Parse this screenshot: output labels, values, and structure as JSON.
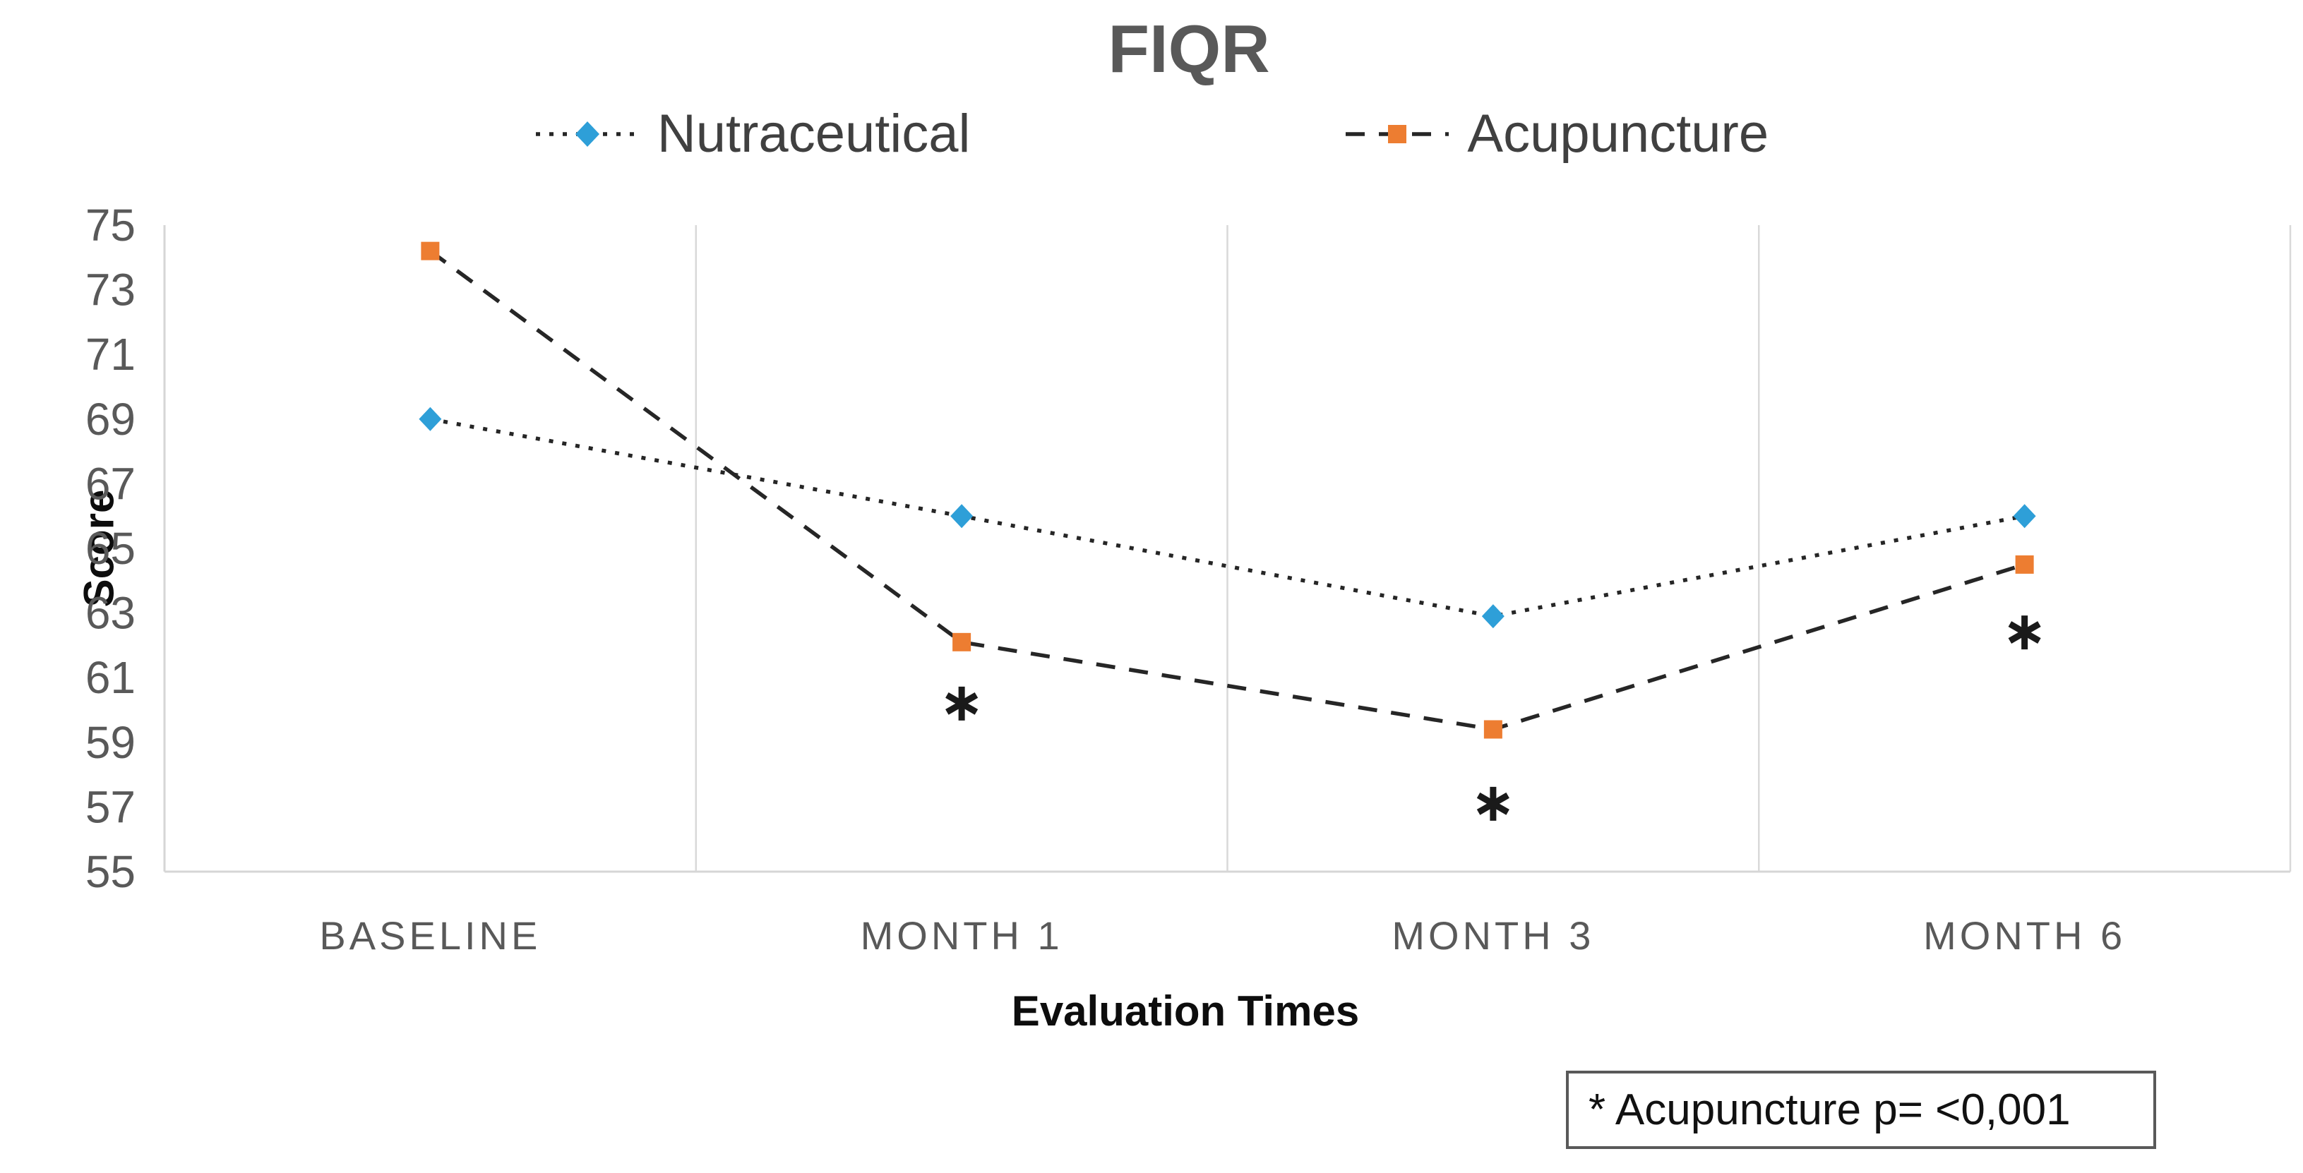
{
  "chart_data": {
    "type": "line",
    "title": "FIQR",
    "xlabel": "Evaluation Times",
    "ylabel": "Score",
    "categories": [
      "BASELINE",
      "MONTH 1",
      "MONTH 3",
      "MONTH 6"
    ],
    "series": [
      {
        "name": "Nutraceutical",
        "values": [
          69,
          66,
          62.9,
          66
        ],
        "marker": "diamond",
        "marker_color": "#2E9FD8",
        "line_style": "dotted",
        "line_color": "#262626"
      },
      {
        "name": "Acupuncture",
        "values": [
          74.2,
          62.1,
          59.4,
          64.5
        ],
        "marker": "square",
        "marker_color": "#ED7D31",
        "line_style": "dashed",
        "line_color": "#262626"
      }
    ],
    "ylim": [
      55,
      75
    ],
    "yticks": [
      55,
      57,
      59,
      61,
      63,
      65,
      67,
      69,
      71,
      73,
      75
    ],
    "grid": "vertical-category-boundaries",
    "legend_position": "top",
    "annotations": {
      "significance_marks": [
        {
          "category_index": 1,
          "series": "Acupuncture",
          "symbol": "*",
          "score_position": 60.2
        },
        {
          "category_index": 2,
          "series": "Acupuncture",
          "symbol": "*",
          "score_position": 57.1
        },
        {
          "category_index": 3,
          "series": "Acupuncture",
          "symbol": "*",
          "score_position": 62.4
        }
      ],
      "note_box": {
        "text": "* Acupuncture p= <0,001"
      }
    },
    "colors": {
      "axis_line": "#D6D6D6",
      "gridline": "#D9D9D9",
      "tick_label": "#595959",
      "category_label": "#595959",
      "title": "#595959",
      "legend_label": "#404040",
      "asterisk": "#1a1a1a"
    }
  }
}
